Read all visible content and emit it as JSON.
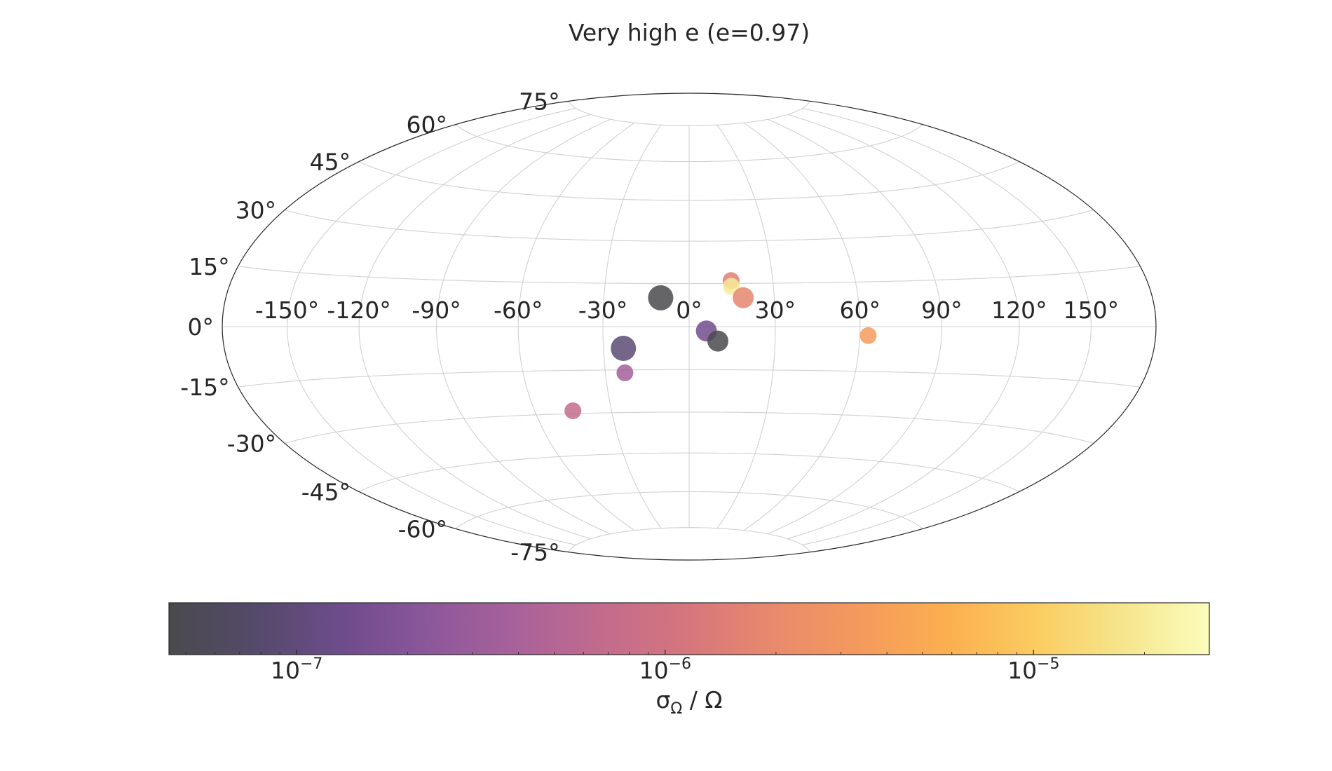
{
  "chart_data": {
    "type": "scatter",
    "projection": "hammer",
    "title": "Very high e (e=0.97)",
    "grid": true,
    "lon_ticks": [
      "-150°",
      "-120°",
      "-90°",
      "-60°",
      "-30°",
      "0°",
      "30°",
      "60°",
      "90°",
      "120°",
      "150°"
    ],
    "lat_ticks": [
      "-75°",
      "-60°",
      "-45°",
      "-30°",
      "-15°",
      "0°",
      "15°",
      "30°",
      "45°",
      "60°",
      "75°"
    ],
    "points": [
      {
        "lon": -10,
        "lat": 10,
        "value": 4.2e-08,
        "size": "large"
      },
      {
        "lon": 15,
        "lat": 16,
        "value": 1.5e-06,
        "size": "small"
      },
      {
        "lon": 15,
        "lat": 14,
        "value": 2e-05,
        "size": "small"
      },
      {
        "lon": 19,
        "lat": 10,
        "value": 1.8e-06,
        "size": "medium"
      },
      {
        "lon": 6,
        "lat": -1.5,
        "value": 1.4e-07,
        "size": "medium"
      },
      {
        "lon": 10,
        "lat": -5,
        "value": 4e-08,
        "size": "medium"
      },
      {
        "lon": 63,
        "lat": -3,
        "value": 3.5e-06,
        "size": "small"
      },
      {
        "lon": -23,
        "lat": -7.5,
        "value": 9e-08,
        "size": "large"
      },
      {
        "lon": -23,
        "lat": -16,
        "value": 3.5e-07,
        "size": "small"
      },
      {
        "lon": -45,
        "lat": -29,
        "value": 7e-07,
        "size": "small"
      }
    ],
    "colorbar": {
      "colormap": "magma",
      "scale": "log",
      "range": [
        4.5e-08,
        3e-05
      ],
      "ticks": [
        {
          "value": 1e-07,
          "base": "10",
          "exp": "−7"
        },
        {
          "value": 1e-06,
          "base": "10",
          "exp": "−6"
        },
        {
          "value": 1e-05,
          "base": "10",
          "exp": "−5"
        }
      ],
      "label_sigma": "σ",
      "label_sub": "Ω",
      "label_rest": " / Ω",
      "gradient_colors": [
        "#4a4a4d",
        "#544a6a",
        "#6e4c8c",
        "#8c579b",
        "#a8629a",
        "#c26b8d",
        "#d6767c",
        "#e98a6c",
        "#f59a5c",
        "#fbb04f",
        "#fbcc60",
        "#f5e58c",
        "#fbfdbc"
      ]
    }
  }
}
